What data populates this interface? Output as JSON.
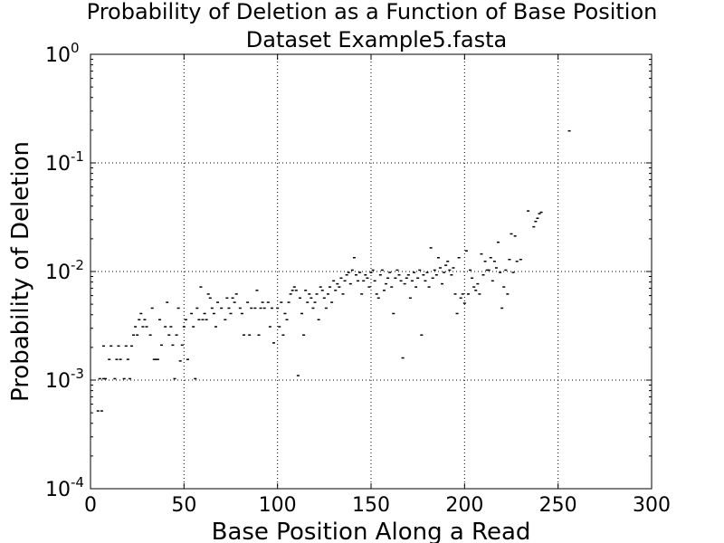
{
  "chart_data": {
    "type": "scatter",
    "title": "Probability of Deletion as a Function of Base Position",
    "subtitle": "Dataset Example5.fasta",
    "xlabel": "Base Position Along a Read",
    "ylabel": "Probability of Deletion",
    "xlim": [
      0,
      300
    ],
    "ylim": [
      0.0001,
      1
    ],
    "yscale": "log",
    "grid": true,
    "xticks": [
      "0",
      "50",
      "100",
      "150",
      "200",
      "250",
      "300"
    ],
    "yticks": [
      {
        "base": "10",
        "exp": "0"
      },
      {
        "base": "10",
        "exp": "-1"
      },
      {
        "base": "10",
        "exp": "-2"
      },
      {
        "base": "10",
        "exp": "-3"
      },
      {
        "base": "10",
        "exp": "-4"
      }
    ],
    "points": [
      [
        4,
        0.00052
      ],
      [
        6,
        0.00052
      ],
      [
        5,
        0.00103
      ],
      [
        7,
        0.00103
      ],
      [
        8,
        0.00103
      ],
      [
        7,
        0.00206
      ],
      [
        10,
        0.00155
      ],
      [
        11,
        0.00206
      ],
      [
        13,
        0.00103
      ],
      [
        14,
        0.00155
      ],
      [
        15,
        0.00206
      ],
      [
        16,
        0.00155
      ],
      [
        18,
        0.00103
      ],
      [
        19,
        0.00206
      ],
      [
        20,
        0.00155
      ],
      [
        21,
        0.00103
      ],
      [
        22,
        0.00206
      ],
      [
        23,
        0.0026
      ],
      [
        24,
        0.0031
      ],
      [
        25,
        0.0026
      ],
      [
        26,
        0.0036
      ],
      [
        27,
        0.0041
      ],
      [
        28,
        0.0031
      ],
      [
        29,
        0.0036
      ],
      [
        30,
        0.0031
      ],
      [
        32,
        0.0026
      ],
      [
        33,
        0.0046
      ],
      [
        34,
        0.00155
      ],
      [
        35,
        0.00155
      ],
      [
        36,
        0.00155
      ],
      [
        37,
        0.0036
      ],
      [
        38,
        0.0021
      ],
      [
        40,
        0.0031
      ],
      [
        41,
        0.0052
      ],
      [
        42,
        0.0026
      ],
      [
        43,
        0.0031
      ],
      [
        44,
        0.0021
      ],
      [
        45,
        0.00103
      ],
      [
        46,
        0.0026
      ],
      [
        47,
        0.0046
      ],
      [
        48,
        0.0015
      ],
      [
        49,
        0.0021
      ],
      [
        50,
        0.0031
      ],
      [
        51,
        0.0036
      ],
      [
        52,
        0.00155
      ],
      [
        54,
        0.0041
      ],
      [
        55,
        0.0031
      ],
      [
        56,
        0.00103
      ],
      [
        57,
        0.0046
      ],
      [
        58,
        0.0036
      ],
      [
        59,
        0.0072
      ],
      [
        60,
        0.0036
      ],
      [
        61,
        0.0041
      ],
      [
        62,
        0.0036
      ],
      [
        63,
        0.0062
      ],
      [
        64,
        0.0057
      ],
      [
        65,
        0.0046
      ],
      [
        66,
        0.0041
      ],
      [
        67,
        0.0031
      ],
      [
        68,
        0.0052
      ],
      [
        70,
        0.0046
      ],
      [
        72,
        0.0036
      ],
      [
        73,
        0.0057
      ],
      [
        74,
        0.0046
      ],
      [
        75,
        0.0041
      ],
      [
        76,
        0.0057
      ],
      [
        77,
        0.0052
      ],
      [
        78,
        0.0062
      ],
      [
        80,
        0.0046
      ],
      [
        81,
        0.0041
      ],
      [
        82,
        0.0026
      ],
      [
        84,
        0.0052
      ],
      [
        85,
        0.0026
      ],
      [
        86,
        0.0046
      ],
      [
        88,
        0.0046
      ],
      [
        89,
        0.0067
      ],
      [
        90,
        0.0026
      ],
      [
        91,
        0.0046
      ],
      [
        92,
        0.0052
      ],
      [
        93,
        0.0046
      ],
      [
        95,
        0.0052
      ],
      [
        96,
        0.0031
      ],
      [
        97,
        0.0046
      ],
      [
        98,
        0.0022
      ],
      [
        100,
        0.0046
      ],
      [
        101,
        0.0031
      ],
      [
        102,
        0.0052
      ],
      [
        103,
        0.0026
      ],
      [
        104,
        0.0041
      ],
      [
        105,
        0.0036
      ],
      [
        106,
        0.0052
      ],
      [
        107,
        0.0062
      ],
      [
        108,
        0.0067
      ],
      [
        109,
        0.0072
      ],
      [
        110,
        0.0067
      ],
      [
        111,
        0.0011
      ],
      [
        112,
        0.0057
      ],
      [
        113,
        0.0041
      ],
      [
        114,
        0.0026
      ],
      [
        115,
        0.0067
      ],
      [
        116,
        0.0052
      ],
      [
        117,
        0.0062
      ],
      [
        118,
        0.0057
      ],
      [
        119,
        0.0046
      ],
      [
        120,
        0.0052
      ],
      [
        121,
        0.0062
      ],
      [
        122,
        0.0036
      ],
      [
        123,
        0.0072
      ],
      [
        124,
        0.0067
      ],
      [
        125,
        0.0057
      ],
      [
        126,
        0.0046
      ],
      [
        127,
        0.0062
      ],
      [
        128,
        0.0072
      ],
      [
        129,
        0.0052
      ],
      [
        130,
        0.0082
      ],
      [
        131,
        0.0067
      ],
      [
        132,
        0.0077
      ],
      [
        133,
        0.0072
      ],
      [
        134,
        0.0087
      ],
      [
        135,
        0.0062
      ],
      [
        136,
        0.0082
      ],
      [
        137,
        0.0093
      ],
      [
        138,
        0.0098
      ],
      [
        139,
        0.0077
      ],
      [
        140,
        0.0103
      ],
      [
        141,
        0.0134
      ],
      [
        142,
        0.0093
      ],
      [
        143,
        0.0082
      ],
      [
        144,
        0.0098
      ],
      [
        145,
        0.0062
      ],
      [
        146,
        0.0082
      ],
      [
        147,
        0.0093
      ],
      [
        148,
        0.0087
      ],
      [
        149,
        0.0072
      ],
      [
        150,
        0.0098
      ],
      [
        151,
        0.0103
      ],
      [
        152,
        0.0082
      ],
      [
        153,
        0.0062
      ],
      [
        154,
        0.0057
      ],
      [
        155,
        0.0093
      ],
      [
        156,
        0.0103
      ],
      [
        157,
        0.0067
      ],
      [
        158,
        0.0077
      ],
      [
        159,
        0.0087
      ],
      [
        160,
        0.0098
      ],
      [
        161,
        0.0072
      ],
      [
        162,
        0.0041
      ],
      [
        163,
        0.0087
      ],
      [
        164,
        0.0103
      ],
      [
        165,
        0.0093
      ],
      [
        166,
        0.0082
      ],
      [
        167,
        0.0016
      ],
      [
        168,
        0.0077
      ],
      [
        169,
        0.0087
      ],
      [
        170,
        0.0093
      ],
      [
        171,
        0.0057
      ],
      [
        172,
        0.0082
      ],
      [
        173,
        0.0098
      ],
      [
        174,
        0.0072
      ],
      [
        175,
        0.0087
      ],
      [
        176,
        0.0103
      ],
      [
        177,
        0.0026
      ],
      [
        178,
        0.0093
      ],
      [
        179,
        0.0082
      ],
      [
        180,
        0.0098
      ],
      [
        181,
        0.0072
      ],
      [
        182,
        0.0165
      ],
      [
        183,
        0.0087
      ],
      [
        184,
        0.0103
      ],
      [
        185,
        0.0093
      ],
      [
        186,
        0.0134
      ],
      [
        187,
        0.0108
      ],
      [
        188,
        0.0077
      ],
      [
        189,
        0.0098
      ],
      [
        190,
        0.0114
      ],
      [
        191,
        0.0124
      ],
      [
        192,
        0.0103
      ],
      [
        193,
        0.0093
      ],
      [
        194,
        0.0108
      ],
      [
        195,
        0.0062
      ],
      [
        196,
        0.0041
      ],
      [
        197,
        0.0134
      ],
      [
        198,
        0.0057
      ],
      [
        199,
        0.0062
      ],
      [
        200,
        0.0051
      ],
      [
        201,
        0.0155
      ],
      [
        202,
        0.0062
      ],
      [
        203,
        0.0103
      ],
      [
        204,
        0.0087
      ],
      [
        205,
        0.0072
      ],
      [
        206,
        0.0067
      ],
      [
        207,
        0.0077
      ],
      [
        208,
        0.0062
      ],
      [
        209,
        0.0145
      ],
      [
        210,
        0.0093
      ],
      [
        211,
        0.0124
      ],
      [
        212,
        0.0103
      ],
      [
        213,
        0.0103
      ],
      [
        214,
        0.0134
      ],
      [
        215,
        0.0082
      ],
      [
        216,
        0.0124
      ],
      [
        217,
        0.0108
      ],
      [
        218,
        0.0186
      ],
      [
        219,
        0.0098
      ],
      [
        220,
        0.0046
      ],
      [
        221,
        0.0072
      ],
      [
        222,
        0.0103
      ],
      [
        223,
        0.0062
      ],
      [
        224,
        0.0129
      ],
      [
        225,
        0.0222
      ],
      [
        226,
        0.0098
      ],
      [
        227,
        0.0212
      ],
      [
        228,
        0.0124
      ],
      [
        230,
        0.0129
      ],
      [
        234,
        0.0361
      ],
      [
        237,
        0.0258
      ],
      [
        238,
        0.0289
      ],
      [
        239,
        0.0309
      ],
      [
        240,
        0.0341
      ],
      [
        241,
        0.0351
      ],
      [
        256,
        0.197
      ]
    ]
  }
}
